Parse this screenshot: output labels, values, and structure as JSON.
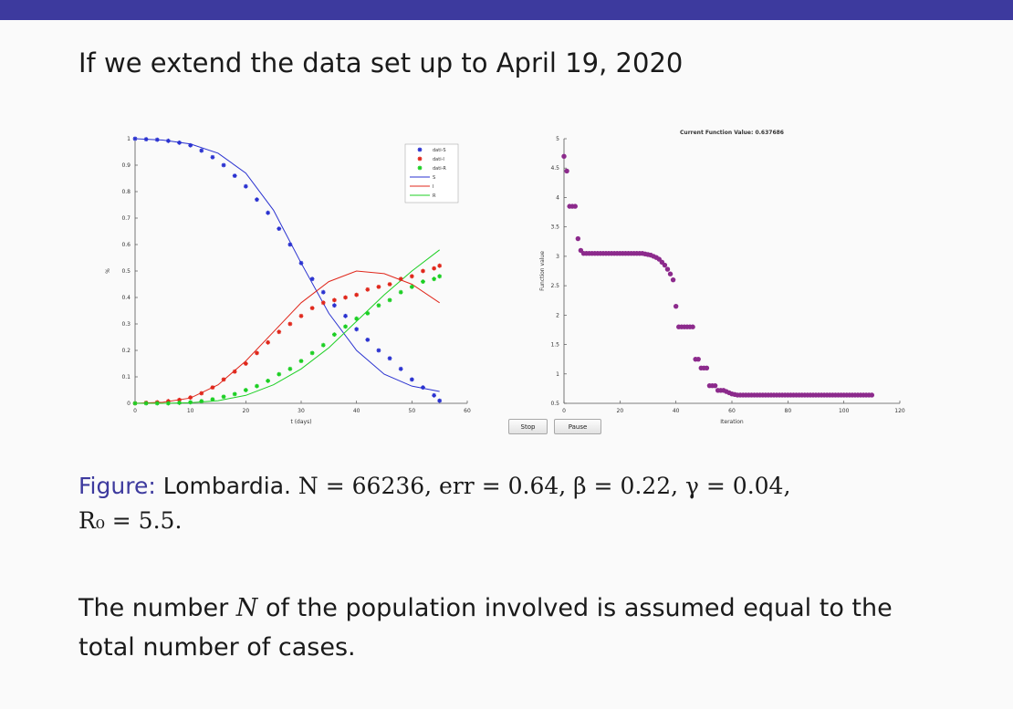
{
  "slide": {
    "title": "If we extend the data set up to April 19, 2020",
    "caption": {
      "label": "Figure:",
      "text": "Lombardia.",
      "line1_math": "N = 66236, err = 0.64, β = 0.22, γ = 0.04,",
      "line2_math": "R₀ = 5.5."
    },
    "body": {
      "prefix": "The number",
      "var": "N",
      "suffix": "of the population involved is assumed equal to the total number of cases."
    },
    "buttons": {
      "stop": "Stop",
      "pause": "Pause"
    }
  },
  "colors": {
    "bar": "#3d3a9e",
    "S": "#2a32d0",
    "I": "#e0271b",
    "R": "#1ccf23",
    "iter": "#8c2a8c"
  },
  "chart_data": [
    {
      "type": "scatter",
      "title": "",
      "xlabel": "t (days)",
      "ylabel": "%",
      "xlim": [
        0,
        60
      ],
      "ylim": [
        0,
        1
      ],
      "xticks": [
        0,
        10,
        20,
        30,
        40,
        50,
        60
      ],
      "yticks": [
        0,
        0.1,
        0.2,
        0.3,
        0.4,
        0.5,
        0.6,
        0.7,
        0.8,
        0.9,
        1
      ],
      "legend_position": "top-right",
      "legend": [
        "dati-S",
        "dati-I",
        "dati-R",
        "S",
        "I",
        "R"
      ],
      "series": [
        {
          "name": "dati-S",
          "style": "marker",
          "x": [
            0,
            2,
            4,
            6,
            8,
            10,
            12,
            14,
            16,
            18,
            20,
            22,
            24,
            26,
            28,
            30,
            32,
            34,
            36,
            38,
            40,
            42,
            44,
            46,
            48,
            50,
            52,
            54,
            55
          ],
          "y": [
            1,
            0.998,
            0.996,
            0.992,
            0.985,
            0.975,
            0.955,
            0.93,
            0.9,
            0.86,
            0.82,
            0.77,
            0.72,
            0.66,
            0.6,
            0.53,
            0.47,
            0.42,
            0.37,
            0.33,
            0.28,
            0.24,
            0.2,
            0.17,
            0.13,
            0.09,
            0.06,
            0.03,
            0.01
          ]
        },
        {
          "name": "dati-I",
          "style": "marker",
          "x": [
            0,
            2,
            4,
            6,
            8,
            10,
            12,
            14,
            16,
            18,
            20,
            22,
            24,
            26,
            28,
            30,
            32,
            34,
            36,
            38,
            40,
            42,
            44,
            46,
            48,
            50,
            52,
            54,
            55
          ],
          "y": [
            0,
            0.002,
            0.004,
            0.008,
            0.013,
            0.022,
            0.038,
            0.06,
            0.09,
            0.12,
            0.15,
            0.19,
            0.23,
            0.27,
            0.3,
            0.33,
            0.36,
            0.38,
            0.39,
            0.4,
            0.41,
            0.43,
            0.44,
            0.45,
            0.47,
            0.48,
            0.5,
            0.51,
            0.52
          ]
        },
        {
          "name": "dati-R",
          "style": "marker",
          "x": [
            0,
            2,
            4,
            6,
            8,
            10,
            12,
            14,
            16,
            18,
            20,
            22,
            24,
            26,
            28,
            30,
            32,
            34,
            36,
            38,
            40,
            42,
            44,
            46,
            48,
            50,
            52,
            54,
            55
          ],
          "y": [
            0,
            0,
            0,
            0,
            0.002,
            0.004,
            0.008,
            0.015,
            0.025,
            0.035,
            0.05,
            0.065,
            0.085,
            0.11,
            0.13,
            0.16,
            0.19,
            0.22,
            0.26,
            0.29,
            0.32,
            0.34,
            0.37,
            0.39,
            0.42,
            0.44,
            0.46,
            0.47,
            0.48
          ]
        },
        {
          "name": "S",
          "style": "line",
          "x": [
            0,
            5,
            10,
            15,
            20,
            25,
            30,
            35,
            40,
            45,
            50,
            55
          ],
          "y": [
            1,
            0.995,
            0.98,
            0.945,
            0.87,
            0.73,
            0.53,
            0.34,
            0.2,
            0.11,
            0.065,
            0.045
          ]
        },
        {
          "name": "I",
          "style": "line",
          "x": [
            0,
            5,
            10,
            15,
            20,
            25,
            30,
            35,
            40,
            45,
            50,
            55
          ],
          "y": [
            0,
            0.004,
            0.02,
            0.07,
            0.16,
            0.27,
            0.38,
            0.46,
            0.5,
            0.49,
            0.45,
            0.38
          ]
        },
        {
          "name": "R",
          "style": "line",
          "x": [
            0,
            5,
            10,
            15,
            20,
            25,
            30,
            35,
            40,
            45,
            50,
            55
          ],
          "y": [
            0,
            0,
            0.002,
            0.01,
            0.03,
            0.07,
            0.13,
            0.21,
            0.31,
            0.41,
            0.5,
            0.58
          ]
        }
      ]
    },
    {
      "type": "scatter",
      "title": "Current Function Value: 0.637686",
      "xlabel": "Iteration",
      "ylabel": "Function value",
      "xlim": [
        0,
        120
      ],
      "ylim": [
        0.5,
        5
      ],
      "xticks": [
        0,
        20,
        40,
        60,
        80,
        100,
        120
      ],
      "yticks": [
        0.5,
        1,
        1.5,
        2,
        2.5,
        3,
        3.5,
        4,
        4.5,
        5
      ],
      "series": [
        {
          "x": [
            0,
            1,
            2,
            3,
            4,
            5,
            6,
            7,
            8,
            9,
            10,
            11,
            12,
            13,
            14,
            15,
            16,
            17,
            18,
            19,
            20,
            21,
            22,
            23,
            24,
            25,
            26,
            27,
            28,
            29,
            30,
            31,
            32,
            33,
            34,
            35,
            36,
            37,
            38,
            39,
            40,
            41,
            42,
            43,
            44,
            45,
            46,
            47,
            48,
            49,
            50,
            51,
            52,
            53,
            54,
            55,
            56,
            57,
            58,
            59,
            60,
            61,
            62,
            63,
            64,
            65,
            66,
            67,
            68,
            69,
            70,
            71,
            72,
            73,
            74,
            75,
            76,
            77,
            78,
            79,
            80,
            81,
            82,
            83,
            84,
            85,
            86,
            87,
            88,
            89,
            90,
            91,
            92,
            93,
            94,
            95,
            96,
            97,
            98,
            99,
            100,
            101,
            102,
            103,
            104,
            105,
            106,
            107,
            108,
            109,
            110
          ],
          "y": [
            4.7,
            4.45,
            3.85,
            3.85,
            3.85,
            3.3,
            3.1,
            3.05,
            3.05,
            3.05,
            3.05,
            3.05,
            3.05,
            3.05,
            3.05,
            3.05,
            3.05,
            3.05,
            3.05,
            3.05,
            3.05,
            3.05,
            3.05,
            3.05,
            3.05,
            3.05,
            3.05,
            3.05,
            3.05,
            3.04,
            3.03,
            3.02,
            3.0,
            2.98,
            2.95,
            2.9,
            2.85,
            2.78,
            2.7,
            2.6,
            2.15,
            1.8,
            1.8,
            1.8,
            1.8,
            1.8,
            1.8,
            1.25,
            1.25,
            1.1,
            1.1,
            1.1,
            0.8,
            0.8,
            0.8,
            0.72,
            0.72,
            0.72,
            0.7,
            0.68,
            0.66,
            0.65,
            0.64,
            0.64,
            0.64,
            0.64,
            0.64,
            0.64,
            0.64,
            0.64,
            0.64,
            0.64,
            0.64,
            0.64,
            0.64,
            0.64,
            0.64,
            0.64,
            0.64,
            0.64,
            0.64,
            0.64,
            0.64,
            0.64,
            0.64,
            0.64,
            0.64,
            0.64,
            0.64,
            0.64,
            0.64,
            0.64,
            0.64,
            0.64,
            0.64,
            0.64,
            0.64,
            0.64,
            0.64,
            0.64,
            0.64,
            0.64,
            0.64,
            0.64,
            0.64,
            0.64,
            0.64,
            0.64,
            0.64,
            0.64,
            0.64
          ]
        }
      ]
    }
  ]
}
